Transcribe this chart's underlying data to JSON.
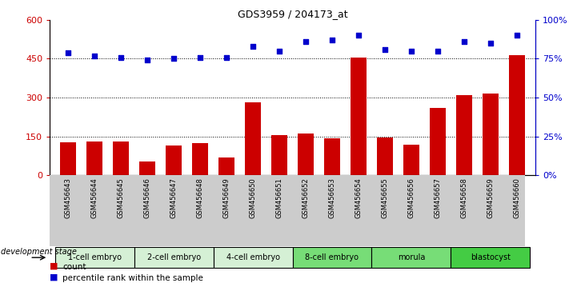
{
  "title": "GDS3959 / 204173_at",
  "samples": [
    "GSM456643",
    "GSM456644",
    "GSM456645",
    "GSM456646",
    "GSM456647",
    "GSM456648",
    "GSM456649",
    "GSM456650",
    "GSM456651",
    "GSM456652",
    "GSM456653",
    "GSM456654",
    "GSM456655",
    "GSM456656",
    "GSM456657",
    "GSM456658",
    "GSM456659",
    "GSM456660"
  ],
  "counts": [
    128,
    130,
    132,
    55,
    115,
    125,
    70,
    282,
    155,
    162,
    143,
    455,
    145,
    120,
    260,
    310,
    315,
    465
  ],
  "percentiles": [
    79,
    77,
    76,
    74,
    75,
    76,
    76,
    83,
    80,
    86,
    87,
    90,
    81,
    80,
    80,
    86,
    85,
    90
  ],
  "stages": [
    {
      "label": "1-cell embryo",
      "start": 0,
      "end": 3,
      "color": "#d5f0d5"
    },
    {
      "label": "2-cell embryo",
      "start": 3,
      "end": 6,
      "color": "#d5f0d5"
    },
    {
      "label": "4-cell embryo",
      "start": 6,
      "end": 9,
      "color": "#d5f0d5"
    },
    {
      "label": "8-cell embryo",
      "start": 9,
      "end": 12,
      "color": "#77dd77"
    },
    {
      "label": "morula",
      "start": 12,
      "end": 15,
      "color": "#77dd77"
    },
    {
      "label": "blastocyst",
      "start": 15,
      "end": 18,
      "color": "#44cc44"
    }
  ],
  "bar_color": "#cc0000",
  "dot_color": "#0000cc",
  "left_ylim": [
    0,
    600
  ],
  "left_yticks": [
    0,
    150,
    300,
    450,
    600
  ],
  "right_yticks": [
    0,
    25,
    50,
    75,
    100
  ],
  "right_yticklabels": [
    "0%",
    "25%",
    "50%",
    "75%",
    "100%"
  ],
  "grid_lines": [
    150,
    300,
    450
  ],
  "tick_bg": "#cccccc"
}
